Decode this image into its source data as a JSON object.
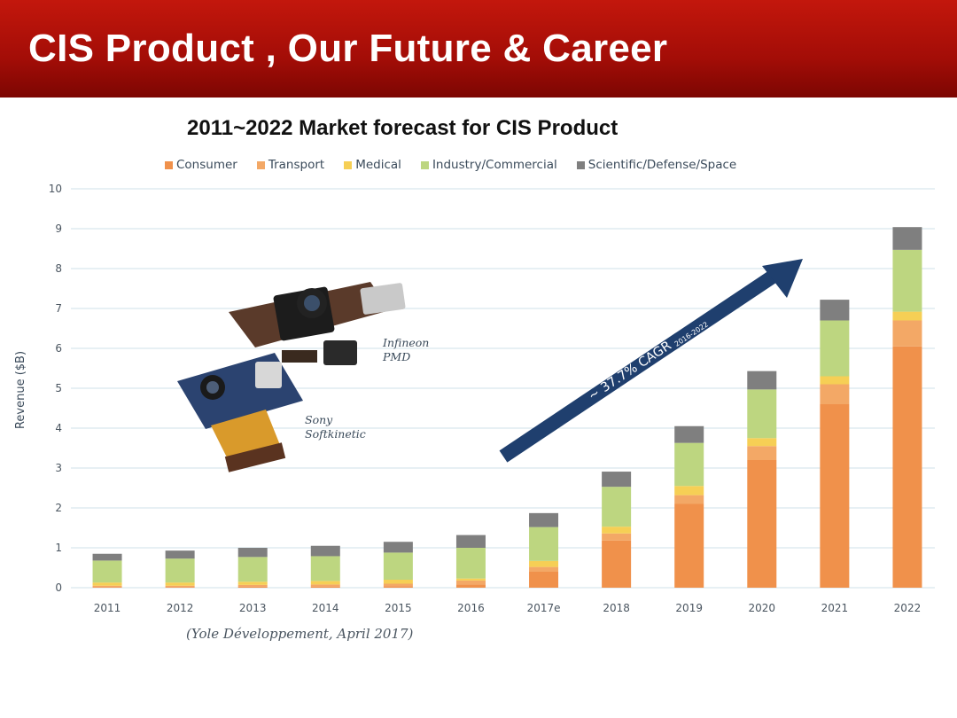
{
  "slide": {
    "title": "CIS Product , Our Future & Career",
    "subtitle": "2011~2022 Market forecast for CIS Product",
    "source": "(Yole Développement, April 2017)"
  },
  "colors": {
    "consumer": "#f0914b",
    "transport": "#f3a866",
    "medical": "#f6cf55",
    "industry": "#bdd680",
    "scientific": "#7f7f7f",
    "arrow": "#1f3f6e",
    "grid": "#cfe0ea"
  },
  "images": [
    {
      "name": "infineon-pmd-camera-module",
      "label_lines": [
        "Infineon",
        "PMD"
      ]
    },
    {
      "name": "sony-softkinetic-camera-module",
      "label_lines": [
        "Sony",
        "Softkinetic"
      ]
    }
  ],
  "chart_data": {
    "type": "bar",
    "stacked": true,
    "title": "",
    "xlabel": "",
    "ylabel": "Revenue ($B)",
    "ylim": [
      0,
      10
    ],
    "yticks": [
      0,
      1,
      2,
      3,
      4,
      5,
      6,
      7,
      8,
      9,
      10
    ],
    "grid": true,
    "legend_position": "top",
    "categories": [
      "2011",
      "2012",
      "2013",
      "2014",
      "2015",
      "2016",
      "2017e",
      "2018",
      "2019",
      "2020",
      "2021",
      "2022"
    ],
    "series": [
      {
        "name": "Consumer",
        "color_key": "consumer",
        "values": [
          0.02,
          0.02,
          0.03,
          0.03,
          0.04,
          0.08,
          0.4,
          1.18,
          2.1,
          3.2,
          4.6,
          6.05
        ]
      },
      {
        "name": "Transport",
        "color_key": "transport",
        "values": [
          0.03,
          0.03,
          0.04,
          0.05,
          0.06,
          0.1,
          0.12,
          0.18,
          0.22,
          0.35,
          0.5,
          0.65
        ]
      },
      {
        "name": "Medical",
        "color_key": "medical",
        "values": [
          0.08,
          0.08,
          0.08,
          0.09,
          0.1,
          0.05,
          0.15,
          0.17,
          0.23,
          0.2,
          0.2,
          0.22
        ]
      },
      {
        "name": "Industry/Commercial",
        "color_key": "industry",
        "values": [
          0.55,
          0.6,
          0.62,
          0.62,
          0.68,
          0.77,
          0.85,
          1.0,
          1.08,
          1.22,
          1.4,
          1.55
        ]
      },
      {
        "name": "Scientific/Defense/Space",
        "color_key": "scientific",
        "values": [
          0.17,
          0.2,
          0.23,
          0.26,
          0.27,
          0.32,
          0.35,
          0.38,
          0.42,
          0.46,
          0.52,
          0.57
        ]
      }
    ],
    "annotations": [
      {
        "text": "~ 37.7% CAGR",
        "subscript": "2016-2022"
      }
    ]
  }
}
